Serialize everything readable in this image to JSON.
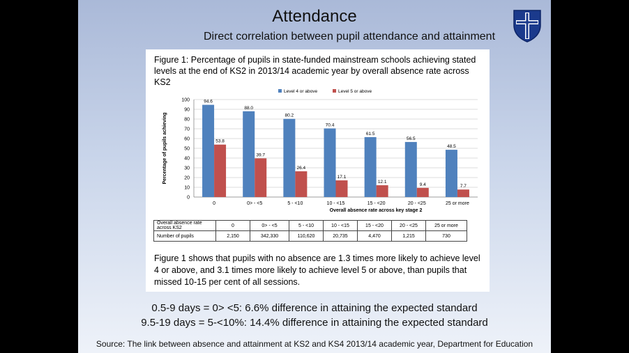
{
  "slide": {
    "title": "Attendance",
    "subtitle": "Direct correlation between pupil attendance and attainment",
    "stat_lines": [
      "0.5-9 days = 0> <5: 6.6% difference in attaining the expected standard",
      "9.5-19 days  = 5-<10%: 14.4% difference in attaining the expected standard"
    ],
    "source": "Source: The link between absence and attainment at KS2 and KS4 2013/14 academic year, Department for Education"
  },
  "figure": {
    "caption": "Figure 1: Percentage of pupils in state-funded mainstream schools achieving stated levels at the end of KS2 in 2013/14 academic year by overall absence rate across KS2",
    "description": "Figure 1 shows that pupils with no absence are 1.3 times more likely to achieve level 4 or above, and 3.1 times more likely to achieve level 5 or above, than pupils that missed 10-15 per cent of all sessions."
  },
  "chart_data": {
    "type": "bar",
    "categories": [
      "0",
      "0> - <5",
      "5 - <10",
      "10 - <15",
      "15 - <20",
      "20 - <25",
      "25 or more"
    ],
    "series": [
      {
        "name": "Level 4 or above",
        "color": "#4f81bd",
        "values": [
          94.6,
          88.0,
          80.2,
          70.4,
          61.5,
          56.5,
          48.5
        ]
      },
      {
        "name": "Level 5 or above",
        "color": "#c0504d",
        "values": [
          53.8,
          39.7,
          26.4,
          17.1,
          12.1,
          9.4,
          7.7
        ]
      }
    ],
    "value_labels": [
      [
        "94.6",
        "88.0",
        "80.2",
        "70.4",
        "61.5",
        "56.5",
        "48.5"
      ],
      [
        "53.8",
        "39.7",
        "26.4",
        "17.1",
        "12.1",
        "9.4",
        "7.7"
      ]
    ],
    "ylim": [
      0,
      100
    ],
    "yticks": [
      "0",
      "10",
      "20",
      "30",
      "40",
      "50",
      "60",
      "70",
      "80",
      "90",
      "100"
    ],
    "ylabel": "Percentage of pupils achieving",
    "xlabel": "Overall absence rate across key stage 2",
    "legend_position": "top",
    "grid": true
  },
  "table": {
    "row1_header": "Overall absence rate across KS2",
    "row1": [
      "0",
      "0> - <5",
      "5 - <10",
      "10 - <15",
      "15 - <20",
      "20 - <25",
      "25 or more"
    ],
    "row2_header": "Number of pupils",
    "row2": [
      "2,150",
      "342,330",
      "110,620",
      "20,735",
      "4,470",
      "1,215",
      "730"
    ]
  },
  "crest": {
    "icon": "shield-cross-icon",
    "color": "#1b3a8c"
  }
}
